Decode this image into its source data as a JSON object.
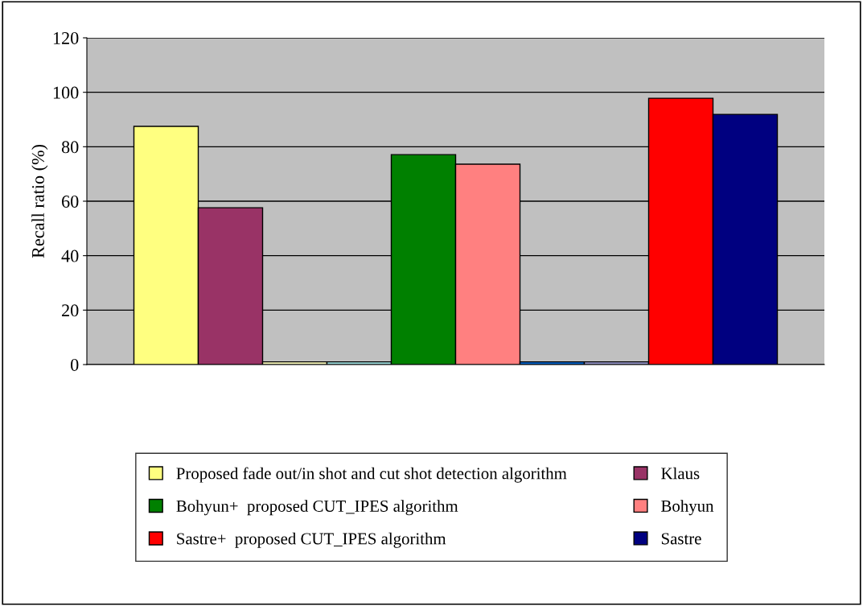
{
  "chart_data": {
    "type": "bar",
    "ylabel": "Recall ratio (%)",
    "categories": [
      null
    ],
    "series": [
      {
        "name": "Proposed fade out/in shot and cut shot detection algorithm",
        "color": "#ffff80",
        "values": [
          87.5
        ]
      },
      {
        "name": "Klaus",
        "color": "#993366",
        "values": [
          57.6
        ]
      },
      {
        "color": "#ffffc0",
        "values": [
          1
        ]
      },
      {
        "color": "#a0e0e0",
        "values": [
          1
        ]
      },
      {
        "name": "Bohyun+  proposed CUT_IPES algorithm",
        "color": "#008000",
        "values": [
          77.1
        ]
      },
      {
        "name": "Bohyun",
        "color": "#ff8080",
        "values": [
          73.6
        ]
      },
      {
        "color": "#0066cc",
        "values": [
          1
        ]
      },
      {
        "color": "#9999cc",
        "values": [
          1
        ]
      },
      {
        "name": "Sastre+  proposed CUT_IPES algorithm",
        "color": "#ff0000",
        "values": [
          97.8
        ]
      },
      {
        "name": "Sastre",
        "color": "#000080",
        "values": [
          91.9
        ]
      }
    ],
    "ylim": [
      0,
      120
    ],
    "yticks": [
      0,
      20,
      40,
      60,
      80,
      100,
      120
    ],
    "grid": "y",
    "legend": "bottom"
  }
}
